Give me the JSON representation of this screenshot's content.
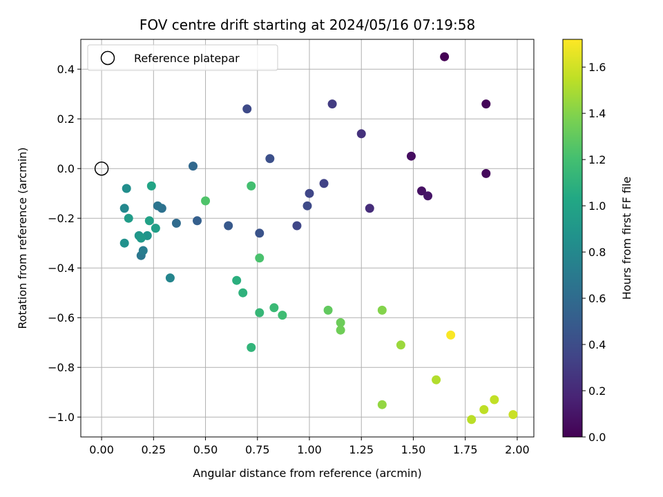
{
  "chart_data": {
    "type": "scatter",
    "title": "FOV centre drift starting at 2024/05/16 07:19:58",
    "xlabel": "Angular distance from reference (arcmin)",
    "ylabel": "Rotation from reference (arcmin)",
    "xlim": [
      -0.1,
      2.08
    ],
    "ylim": [
      -1.08,
      0.52
    ],
    "xticks": [
      0.0,
      0.25,
      0.5,
      0.75,
      1.0,
      1.25,
      1.5,
      1.75,
      2.0
    ],
    "xtick_labels": [
      "0.00",
      "0.25",
      "0.50",
      "0.75",
      "1.00",
      "1.25",
      "1.50",
      "1.75",
      "2.00"
    ],
    "yticks": [
      0.4,
      0.2,
      0.0,
      -0.2,
      -0.4,
      -0.6,
      -0.8,
      -1.0
    ],
    "ytick_labels": [
      "0.4",
      "0.2",
      "0.0",
      "−0.2",
      "−0.4",
      "−0.6",
      "−0.8",
      "−1.0"
    ],
    "grid": true,
    "legend": {
      "position": "top-left",
      "entries": [
        {
          "label": "Reference platepar",
          "marker": "open-circle",
          "color": "#000000"
        }
      ]
    },
    "reference_point": {
      "x": 0.0,
      "y": 0.0
    },
    "colorbar": {
      "label": "Hours from first FF file",
      "colormap": "viridis",
      "range": [
        0.0,
        1.72
      ],
      "ticks": [
        0.0,
        0.2,
        0.4,
        0.6,
        0.8,
        1.0,
        1.2,
        1.4,
        1.6
      ],
      "tick_labels": [
        "0.0",
        "0.2",
        "0.4",
        "0.6",
        "0.8",
        "1.0",
        "1.2",
        "1.4",
        "1.6"
      ]
    },
    "points": [
      {
        "x": 1.65,
        "y": 0.45,
        "hours": 0.0
      },
      {
        "x": 1.85,
        "y": 0.26,
        "hours": 0.02
      },
      {
        "x": 1.85,
        "y": -0.02,
        "hours": 0.04
      },
      {
        "x": 1.49,
        "y": 0.05,
        "hours": 0.06
      },
      {
        "x": 1.54,
        "y": -0.09,
        "hours": 0.08
      },
      {
        "x": 1.57,
        "y": -0.11,
        "hours": 0.1
      },
      {
        "x": 1.29,
        "y": -0.16,
        "hours": 0.22
      },
      {
        "x": 1.25,
        "y": 0.14,
        "hours": 0.24
      },
      {
        "x": 1.11,
        "y": 0.26,
        "hours": 0.3
      },
      {
        "x": 1.07,
        "y": -0.06,
        "hours": 0.34
      },
      {
        "x": 1.0,
        "y": -0.1,
        "hours": 0.36
      },
      {
        "x": 0.99,
        "y": -0.15,
        "hours": 0.38
      },
      {
        "x": 0.94,
        "y": -0.23,
        "hours": 0.36
      },
      {
        "x": 0.7,
        "y": 0.24,
        "hours": 0.38
      },
      {
        "x": 0.81,
        "y": 0.04,
        "hours": 0.42
      },
      {
        "x": 0.76,
        "y": -0.26,
        "hours": 0.44
      },
      {
        "x": 0.61,
        "y": -0.23,
        "hours": 0.48
      },
      {
        "x": 0.46,
        "y": -0.21,
        "hours": 0.52
      },
      {
        "x": 0.44,
        "y": 0.01,
        "hours": 0.58
      },
      {
        "x": 0.36,
        "y": -0.22,
        "hours": 0.6
      },
      {
        "x": 0.29,
        "y": -0.16,
        "hours": 0.64
      },
      {
        "x": 0.27,
        "y": -0.15,
        "hours": 0.66
      },
      {
        "x": 0.19,
        "y": -0.35,
        "hours": 0.68
      },
      {
        "x": 0.2,
        "y": -0.33,
        "hours": 0.72
      },
      {
        "x": 0.33,
        "y": -0.44,
        "hours": 0.78
      },
      {
        "x": 0.11,
        "y": -0.16,
        "hours": 0.8
      },
      {
        "x": 0.12,
        "y": -0.08,
        "hours": 0.84
      },
      {
        "x": 0.11,
        "y": -0.3,
        "hours": 0.86
      },
      {
        "x": 0.22,
        "y": -0.27,
        "hours": 0.88
      },
      {
        "x": 0.18,
        "y": -0.27,
        "hours": 0.9
      },
      {
        "x": 0.19,
        "y": -0.28,
        "hours": 0.92
      },
      {
        "x": 0.13,
        "y": -0.2,
        "hours": 0.94
      },
      {
        "x": 0.26,
        "y": -0.24,
        "hours": 0.96
      },
      {
        "x": 0.23,
        "y": -0.21,
        "hours": 0.98
      },
      {
        "x": 0.24,
        "y": -0.07,
        "hours": 1.0
      },
      {
        "x": 0.65,
        "y": -0.45,
        "hours": 1.08
      },
      {
        "x": 0.68,
        "y": -0.5,
        "hours": 1.1
      },
      {
        "x": 0.72,
        "y": -0.72,
        "hours": 1.12
      },
      {
        "x": 0.76,
        "y": -0.58,
        "hours": 1.14
      },
      {
        "x": 0.83,
        "y": -0.56,
        "hours": 1.16
      },
      {
        "x": 0.87,
        "y": -0.59,
        "hours": 1.18
      },
      {
        "x": 0.72,
        "y": -0.07,
        "hours": 1.2
      },
      {
        "x": 0.76,
        "y": -0.36,
        "hours": 1.22
      },
      {
        "x": 0.5,
        "y": -0.13,
        "hours": 1.24
      },
      {
        "x": 1.09,
        "y": -0.57,
        "hours": 1.3
      },
      {
        "x": 1.15,
        "y": -0.62,
        "hours": 1.33
      },
      {
        "x": 1.15,
        "y": -0.65,
        "hours": 1.34
      },
      {
        "x": 1.35,
        "y": -0.57,
        "hours": 1.4
      },
      {
        "x": 1.35,
        "y": -0.95,
        "hours": 1.44
      },
      {
        "x": 1.44,
        "y": -0.71,
        "hours": 1.46
      },
      {
        "x": 1.61,
        "y": -0.85,
        "hours": 1.52
      },
      {
        "x": 1.78,
        "y": -1.01,
        "hours": 1.54
      },
      {
        "x": 1.84,
        "y": -0.97,
        "hours": 1.55
      },
      {
        "x": 1.89,
        "y": -0.93,
        "hours": 1.56
      },
      {
        "x": 1.98,
        "y": -0.99,
        "hours": 1.58
      },
      {
        "x": 1.68,
        "y": -0.67,
        "hours": 1.71
      }
    ]
  }
}
